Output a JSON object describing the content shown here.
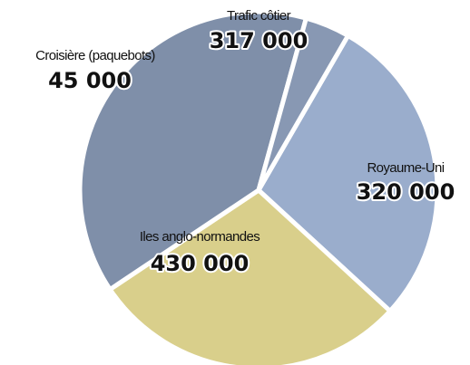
{
  "chart_data": {
    "type": "pie",
    "categories": [
      "Trafic côtier",
      "Royaume-Uni",
      "Iles anglo-normandes",
      "Croisière (paquebots)"
    ],
    "values": [
      317000,
      320000,
      430000,
      45000
    ],
    "value_labels": [
      "317 000",
      "320 000",
      "430 000",
      "45 000"
    ],
    "colors": [
      "#9aadcc",
      "#d9cf8b",
      "#7f8fa9",
      "#8898b3"
    ]
  }
}
